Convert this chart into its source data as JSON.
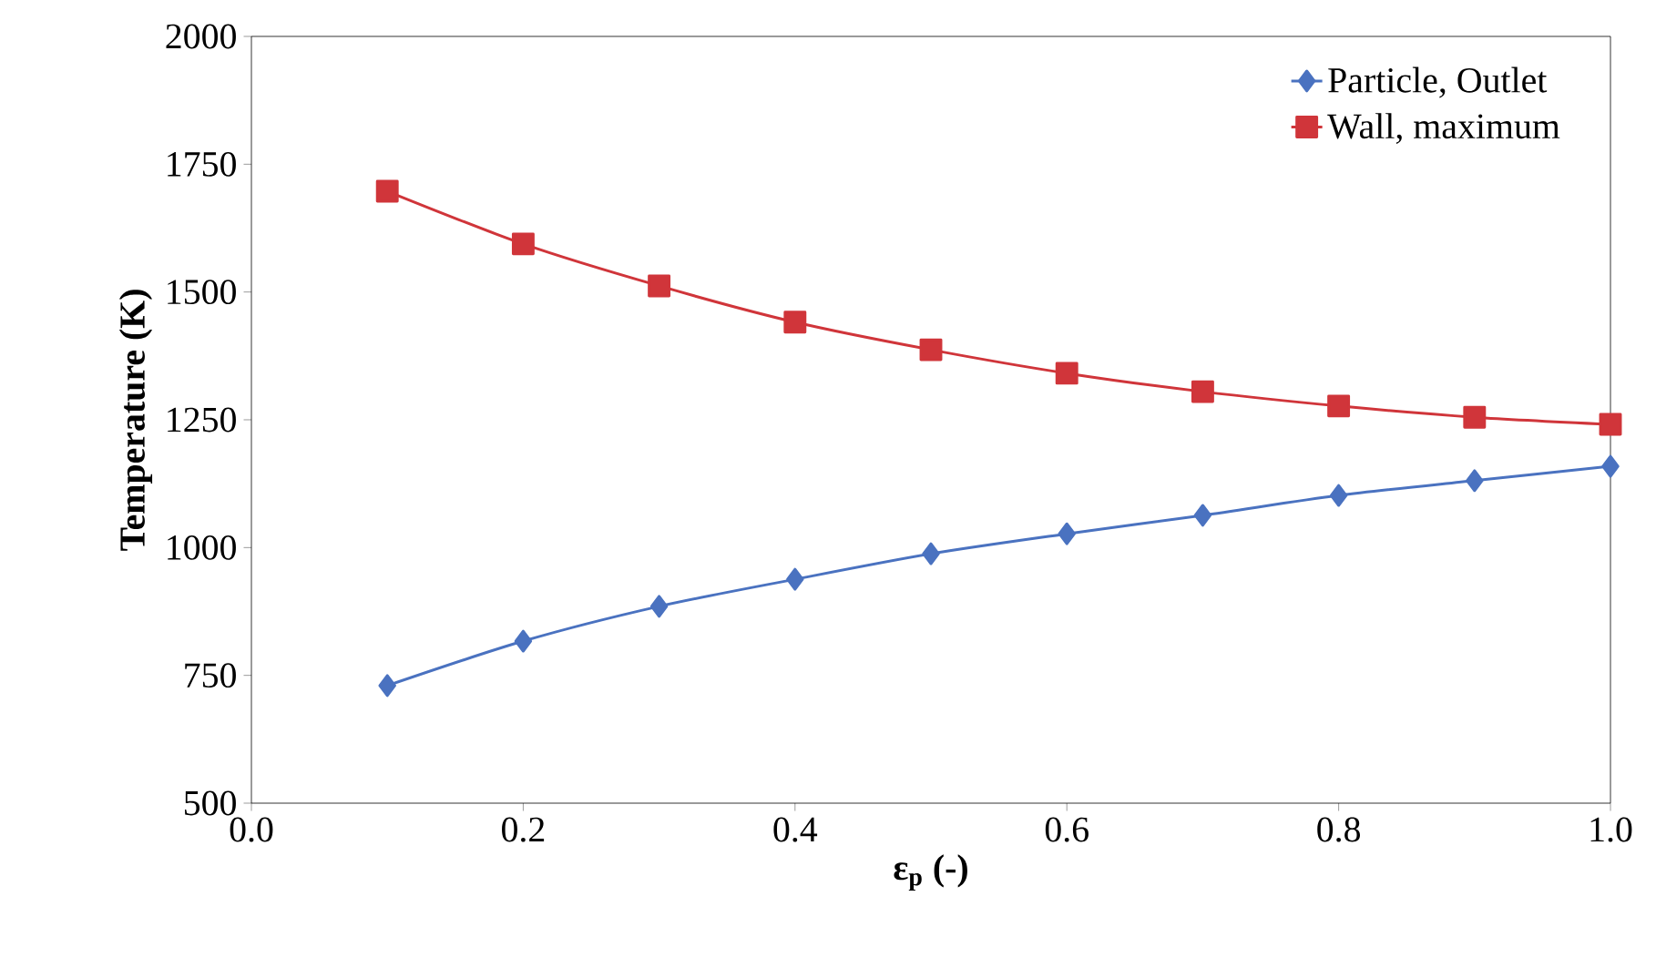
{
  "chart_data": {
    "type": "line",
    "xlabel": "ε$_{p}$ (-)",
    "ylabel": "Temperature (K)",
    "x": [
      0.1,
      0.2,
      0.3,
      0.4,
      0.5,
      0.6,
      0.7,
      0.8,
      0.9,
      1.0
    ],
    "series": [
      {
        "name": "Particle, Outlet",
        "color": "#4a72c0",
        "marker": "diamond",
        "values": [
          730,
          817,
          885,
          938,
          988,
          1027,
          1063,
          1102,
          1131,
          1159
        ]
      },
      {
        "name": "Wall, maximum",
        "color": "#d0353a",
        "marker": "square",
        "values": [
          1697,
          1594,
          1512,
          1441,
          1387,
          1341,
          1305,
          1277,
          1255,
          1241
        ]
      }
    ],
    "xlim": [
      0,
      1
    ],
    "ylim": [
      500,
      2000
    ],
    "xticks": [
      {
        "value": 0,
        "label": "0.0"
      },
      0.2,
      0.4,
      0.6,
      0.8,
      {
        "value": 1,
        "label": "1.0"
      }
    ],
    "yticks": [
      500,
      750,
      1000,
      1250,
      1500,
      1750,
      2000
    ],
    "grid": false,
    "legend": "top right",
    "line_style": "solid"
  }
}
